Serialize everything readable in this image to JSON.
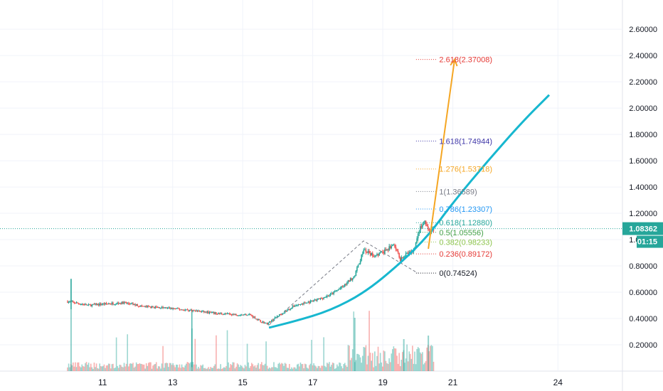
{
  "chart_data": {
    "type": "candlestick",
    "y_axis": {
      "ticks": [
        "2.60000",
        "2.40000",
        "2.20000",
        "2.00000",
        "1.80000",
        "1.60000",
        "1.40000",
        "1.20000",
        "1.00000",
        "0.80000",
        "0.60000",
        "0.40000",
        "0.20000"
      ],
      "tick_values": [
        2.6,
        2.4,
        2.2,
        2.0,
        1.8,
        1.6,
        1.4,
        1.2,
        1.0,
        0.8,
        0.6,
        0.4,
        0.2
      ],
      "range": [
        0.0,
        2.78
      ]
    },
    "x_axis": {
      "ticks": [
        "11",
        "13",
        "15",
        "17",
        "19",
        "21",
        "24"
      ],
      "tick_days": [
        11,
        13,
        15,
        17,
        19,
        21,
        24
      ],
      "range_days": [
        10.0,
        27.0
      ]
    },
    "current_price": {
      "label": "1.08362",
      "value": 1.08362,
      "color": "#26a69a"
    },
    "countdown": {
      "label": "01:15"
    },
    "price_anchors": [
      {
        "day": 10.0,
        "price": 0.53
      },
      {
        "day": 10.6,
        "price": 0.5
      },
      {
        "day": 11.0,
        "price": 0.51
      },
      {
        "day": 11.6,
        "price": 0.52
      },
      {
        "day": 12.2,
        "price": 0.49
      },
      {
        "day": 12.8,
        "price": 0.48
      },
      {
        "day": 13.2,
        "price": 0.47
      },
      {
        "day": 13.6,
        "price": 0.46
      },
      {
        "day": 14.2,
        "price": 0.44
      },
      {
        "day": 14.8,
        "price": 0.43
      },
      {
        "day": 15.2,
        "price": 0.43
      },
      {
        "day": 15.5,
        "price": 0.38
      },
      {
        "day": 15.7,
        "price": 0.36
      },
      {
        "day": 16.0,
        "price": 0.42
      },
      {
        "day": 16.5,
        "price": 0.5
      },
      {
        "day": 17.0,
        "price": 0.53
      },
      {
        "day": 17.5,
        "price": 0.58
      },
      {
        "day": 17.9,
        "price": 0.65
      },
      {
        "day": 18.2,
        "price": 0.73
      },
      {
        "day": 18.45,
        "price": 0.92
      },
      {
        "day": 18.7,
        "price": 0.88
      },
      {
        "day": 19.0,
        "price": 0.9
      },
      {
        "day": 19.3,
        "price": 0.96
      },
      {
        "day": 19.5,
        "price": 0.85
      },
      {
        "day": 19.7,
        "price": 0.89
      },
      {
        "day": 19.9,
        "price": 0.92
      },
      {
        "day": 20.05,
        "price": 1.08
      },
      {
        "day": 20.2,
        "price": 1.13
      },
      {
        "day": 20.35,
        "price": 1.05
      },
      {
        "day": 20.45,
        "price": 1.08362
      }
    ],
    "spikes": [
      {
        "day": 10.1,
        "high": 0.7,
        "low": 0.47
      },
      {
        "day": 13.55,
        "high": 0.45,
        "low": 0.03
      }
    ],
    "fib_levels": [
      {
        "ratio": "2.618",
        "value": 2.37008,
        "label": "2.618(2.37008)",
        "color": "#e53935"
      },
      {
        "ratio": "1.618",
        "value": 1.74944,
        "label": "1.618(1.74944)",
        "color": "#3f37a8"
      },
      {
        "ratio": "1.276",
        "value": 1.53718,
        "label": "1.276(1.53718)",
        "color": "#f5a623"
      },
      {
        "ratio": "1",
        "value": 1.36589,
        "label": "1(1.36589)",
        "color": "#787b86"
      },
      {
        "ratio": "0.786",
        "value": 1.23307,
        "label": "0.786(1.23307)",
        "color": "#2196f3"
      },
      {
        "ratio": "0.618",
        "value": 1.1288,
        "label": "0.618(1.12880)",
        "color": "#26a69a"
      },
      {
        "ratio": "0.5",
        "value": 1.05556,
        "label": "0.5(1.05556)",
        "color": "#43a047"
      },
      {
        "ratio": "0.382",
        "value": 0.98233,
        "label": "0.382(0.98233)",
        "color": "#8bc34a"
      },
      {
        "ratio": "0.236",
        "value": 0.89172,
        "label": "0.236(0.89172)",
        "color": "#e53935"
      },
      {
        "ratio": "0",
        "value": 0.74524,
        "label": "0(0.74524)",
        "color": "#131722"
      }
    ],
    "fib_anchor_points": [
      {
        "day": 15.75,
        "price": 0.35
      },
      {
        "day": 18.45,
        "price": 0.99
      },
      {
        "day": 20.0,
        "price": 0.74524
      }
    ],
    "curve": {
      "color": "#17b7cf",
      "points": [
        {
          "day": 15.75,
          "price": 0.33
        },
        {
          "day": 16.5,
          "price": 0.38
        },
        {
          "day": 17.5,
          "price": 0.46
        },
        {
          "day": 18.5,
          "price": 0.6
        },
        {
          "day": 19.5,
          "price": 0.82
        },
        {
          "day": 20.3,
          "price": 1.03
        },
        {
          "day": 21.0,
          "price": 1.28
        },
        {
          "day": 22.0,
          "price": 1.6
        },
        {
          "day": 23.0,
          "price": 1.9
        },
        {
          "day": 23.75,
          "price": 2.1
        }
      ]
    },
    "projection_arrow": {
      "color": "#f5a623",
      "from": {
        "day": 20.3,
        "price": 0.93
      },
      "to": {
        "day": 21.05,
        "price": 2.37
      }
    }
  }
}
